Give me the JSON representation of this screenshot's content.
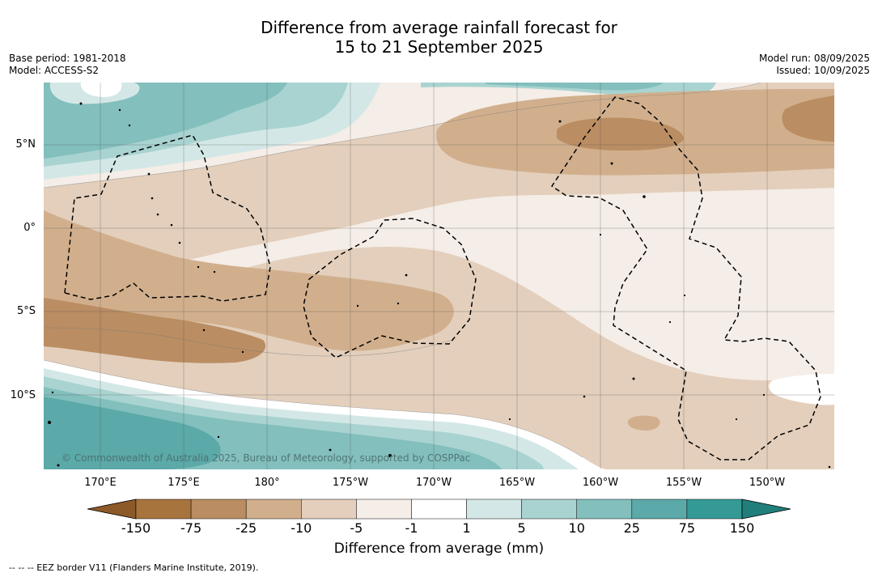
{
  "header": {
    "title_line1": "Difference from average rainfall forecast for",
    "title_line2": "15 to 21 September 2025",
    "base_period": "Base period: 1981-2018",
    "model": "Model: ACCESS-S2",
    "model_run": "Model run: 08/09/2025",
    "issued": "Issued: 10/09/2025"
  },
  "map": {
    "lat_labels": [
      "5°N",
      "0°",
      "5°S",
      "10°S"
    ],
    "lon_labels": [
      "170°E",
      "175°E",
      "180°",
      "175°W",
      "170°W",
      "165°W",
      "160°W",
      "155°W",
      "150°W"
    ],
    "copyright": "© Commonwealth of Australia 2025, Bureau of Meteorology, supported by COSPPac"
  },
  "colorbar": {
    "labels": [
      "-150",
      "-75",
      "-25",
      "-10",
      "-5",
      "-1",
      "1",
      "5",
      "10",
      "25",
      "75",
      "150"
    ],
    "colors": [
      "#a8743e",
      "#ba8d62",
      "#d1af8d",
      "#e3cfbc",
      "#f5ede7",
      "#ffffff",
      "#d3e8e6",
      "#a9d3d0",
      "#82bfbd",
      "#5ba9a8",
      "#359a96"
    ],
    "low_extend_color": "#8c5a28",
    "high_extend_color": "#207f7b",
    "title": "Difference from average (mm)"
  },
  "footer": {
    "eez_note": "--  --  -- EEZ border V11 (Flanders Marine Institute, 2019)."
  }
}
